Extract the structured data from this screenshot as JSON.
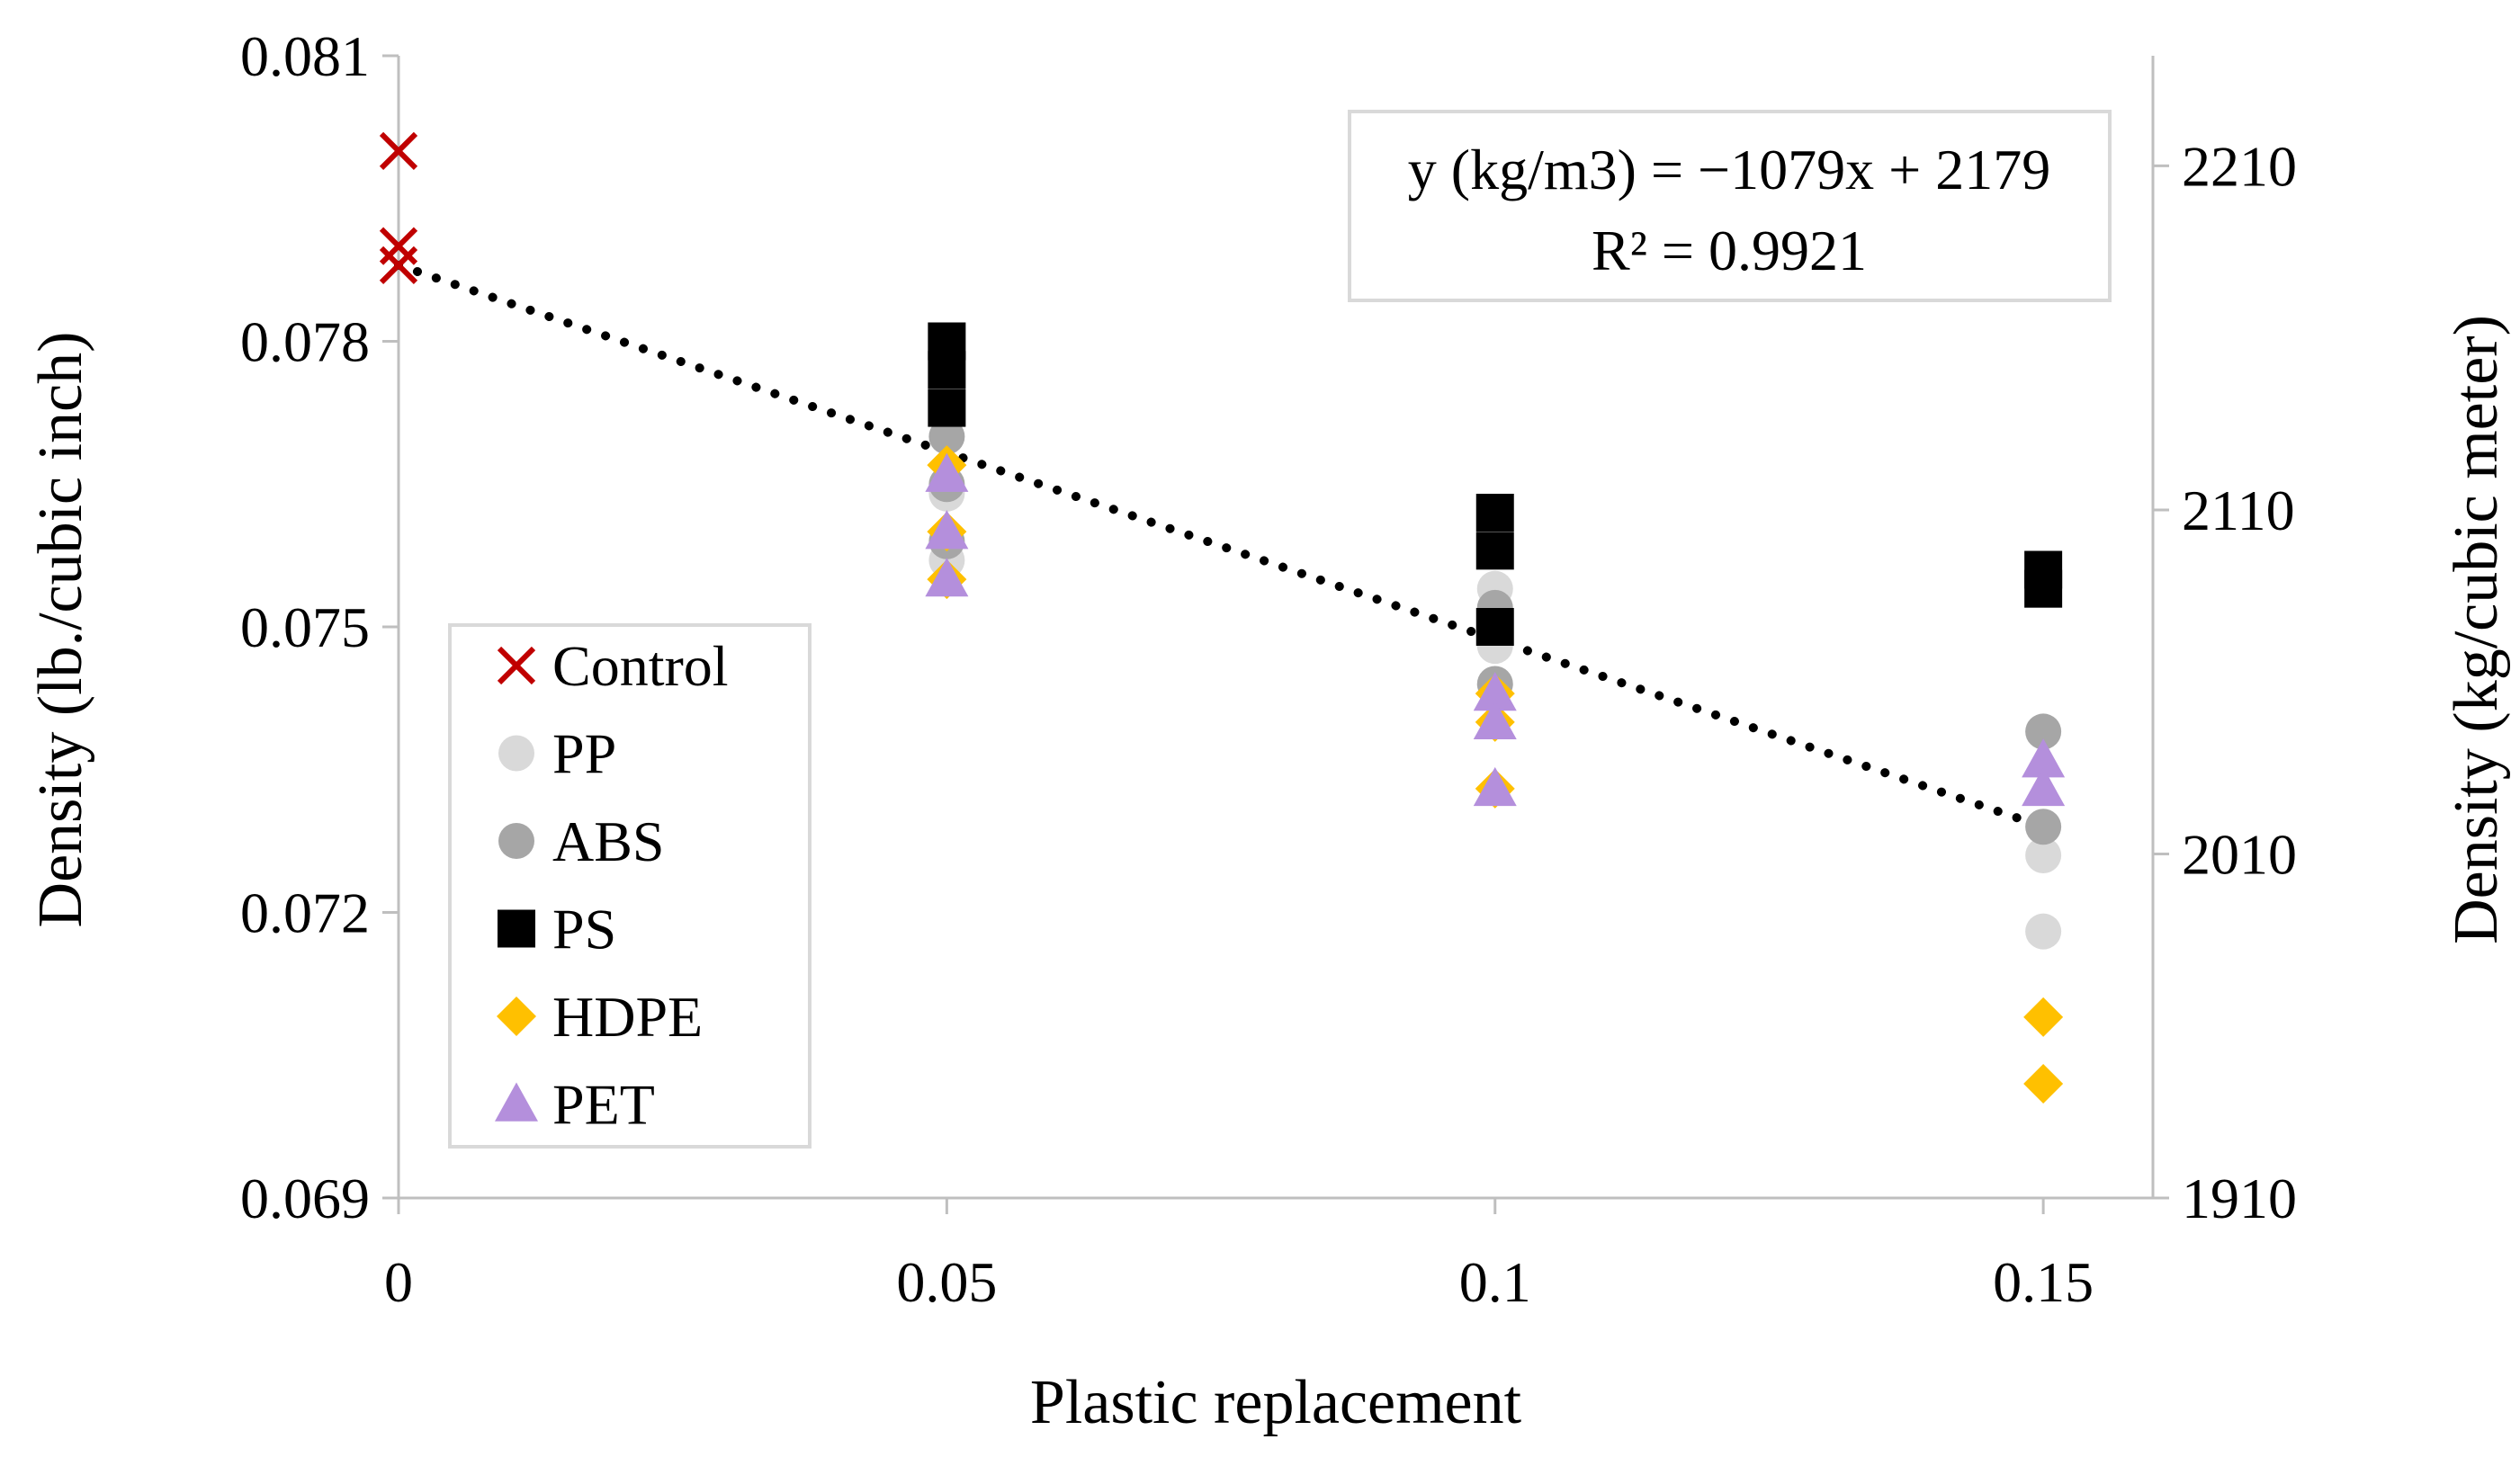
{
  "chart_data": {
    "type": "scatter",
    "title": "",
    "xlabel": "Plastic replacement",
    "ylabel": "Density (lb./cubic inch)",
    "y2label": "Density (kg/cubic meter)",
    "xlim": [
      0,
      0.16
    ],
    "ylim": [
      0.069,
      0.081
    ],
    "y2lim": [
      1910,
      2242
    ],
    "x_ticks": [
      "0",
      "0.05",
      "0.1",
      "0.15"
    ],
    "y_ticks": [
      "0.081",
      "0.078",
      "0.075",
      "0.072",
      "0.069"
    ],
    "y2_ticks": [
      "2210",
      "2110",
      "2010",
      "1910"
    ],
    "series": [
      {
        "name": "Control",
        "marker": "x",
        "color": "#c00000",
        "points": [
          [
            0,
            0.08
          ],
          [
            0,
            0.079
          ],
          [
            0,
            0.0788
          ]
        ]
      },
      {
        "name": "PP",
        "marker": "circle",
        "color": "#d9d9d9",
        "points": [
          [
            0.05,
            0.0764
          ],
          [
            0.05,
            0.0757
          ],
          [
            0.1,
            0.0754
          ],
          [
            0.1,
            0.0748
          ],
          [
            0.15,
            0.0726
          ],
          [
            0.15,
            0.0718
          ]
        ]
      },
      {
        "name": "ABS",
        "marker": "circle",
        "color": "#a6a6a6",
        "points": [
          [
            0.05,
            0.077
          ],
          [
            0.05,
            0.0765
          ],
          [
            0.05,
            0.0759
          ],
          [
            0.1,
            0.0752
          ],
          [
            0.1,
            0.0744
          ],
          [
            0.15,
            0.0739
          ],
          [
            0.15,
            0.0729
          ]
        ]
      },
      {
        "name": "PS",
        "marker": "square",
        "color": "#000000",
        "points": [
          [
            0.05,
            0.078
          ],
          [
            0.05,
            0.0777
          ],
          [
            0.05,
            0.0773
          ],
          [
            0.1,
            0.0762
          ],
          [
            0.1,
            0.0758
          ],
          [
            0.1,
            0.075
          ],
          [
            0.15,
            0.0756
          ],
          [
            0.15,
            0.0754
          ]
        ]
      },
      {
        "name": "HDPE",
        "marker": "diamond",
        "color": "#ffc000",
        "points": [
          [
            0.05,
            0.0767
          ],
          [
            0.05,
            0.076
          ],
          [
            0.05,
            0.0755
          ],
          [
            0.1,
            0.0743
          ],
          [
            0.1,
            0.074
          ],
          [
            0.1,
            0.0733
          ],
          [
            0.15,
            0.0709
          ],
          [
            0.15,
            0.0702
          ]
        ]
      },
      {
        "name": "PET",
        "marker": "triangle",
        "color": "#b48fdc",
        "points": [
          [
            0.05,
            0.0766
          ],
          [
            0.05,
            0.076
          ],
          [
            0.05,
            0.0755
          ],
          [
            0.1,
            0.0743
          ],
          [
            0.1,
            0.074
          ],
          [
            0.1,
            0.0733
          ],
          [
            0.15,
            0.0736
          ],
          [
            0.15,
            0.0733
          ]
        ]
      }
    ],
    "trendline": {
      "style": "dotted",
      "color": "#000000",
      "from": [
        0,
        0.0788
      ],
      "to": [
        0.15,
        0.0729
      ]
    },
    "annotation": {
      "equation": "y (kg/m3) = −1079x + 2179",
      "r_squared": "R² = 0.9921"
    },
    "legend_position": "left-center"
  }
}
